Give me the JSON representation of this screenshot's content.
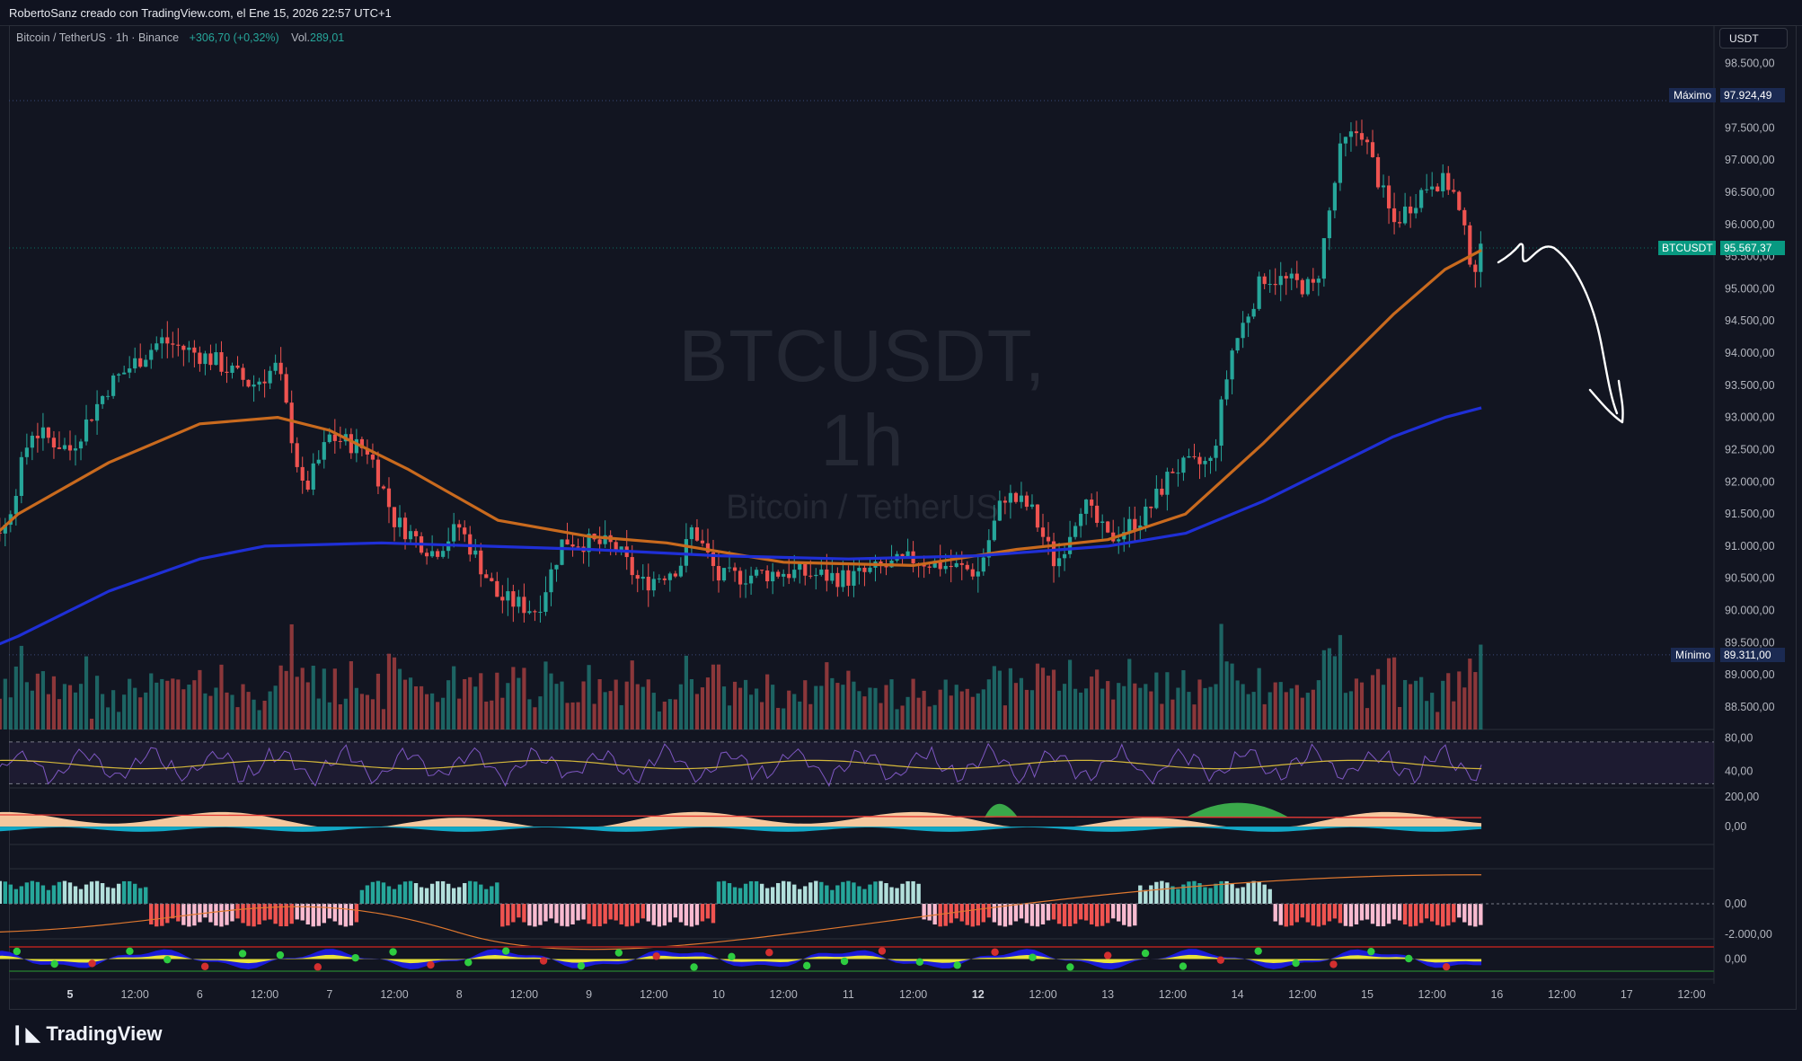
{
  "header": {
    "credit": "RobertoSanz creado con TradingView.com, el Ene 15, 2026 22:57 UTC+1"
  },
  "legend": {
    "symbol": "Bitcoin / TetherUS · 1h · Binance",
    "change": "+306,70 (+0,32%)",
    "vol_label": "Vol.",
    "vol_value": "289,01"
  },
  "currency_button": "USDT",
  "watermark": {
    "line1": "BTCUSDT, 1h",
    "line2": "Bitcoin / TetherUS"
  },
  "price_labels": {
    "max_label": "Máximo",
    "max_value": "97.924,49",
    "min_label": "Mínimo",
    "min_value": "89.311,00",
    "last_label": "BTCUSDT",
    "last_value": "95.567,37"
  },
  "footer": {
    "brand": "TradingView"
  },
  "colors": {
    "background": "#121521",
    "up": "#26a69a",
    "down": "#ef5350",
    "ema_orange": "#c96a1e",
    "ema_blue": "#1f2fd6",
    "last_price": "#089981"
  },
  "chart_data": [
    {
      "type": "candlestick",
      "panel": "price",
      "y_axis_ticks": [
        "98.500,00",
        "98.000,00",
        "97.500,00",
        "97.000,00",
        "96.500,00",
        "96.000,00",
        "95.500,00",
        "95.000,00",
        "94.500,00",
        "94.000,00",
        "93.500,00",
        "93.000,00",
        "92.500,00",
        "92.000,00",
        "91.500,00",
        "91.000,00",
        "90.500,00",
        "90.000,00",
        "89.500,00",
        "89.000,00",
        "88.500,00"
      ],
      "ylim": [
        88150,
        98650
      ],
      "x_axis_ticks": [
        "5",
        "12:00",
        "6",
        "12:00",
        "7",
        "12:00",
        "8",
        "12:00",
        "9",
        "12:00",
        "10",
        "12:00",
        "11",
        "12:00",
        "12",
        "12:00",
        "13",
        "12:00",
        "14",
        "12:00",
        "15",
        "12:00",
        "16",
        "12:00",
        "17",
        "12:00"
      ],
      "price_path": [
        {
          "d": 4.0,
          "p": 91050
        },
        {
          "d": 4.5,
          "p": 91300
        },
        {
          "d": 4.7,
          "p": 92800
        },
        {
          "d": 5.0,
          "p": 92500
        },
        {
          "d": 5.3,
          "p": 93500
        },
        {
          "d": 5.7,
          "p": 94200
        },
        {
          "d": 6.1,
          "p": 93900
        },
        {
          "d": 6.4,
          "p": 93500
        },
        {
          "d": 6.6,
          "p": 93800
        },
        {
          "d": 6.8,
          "p": 91800
        },
        {
          "d": 7.0,
          "p": 92700
        },
        {
          "d": 7.3,
          "p": 92500
        },
        {
          "d": 7.5,
          "p": 91400
        },
        {
          "d": 7.8,
          "p": 90900
        },
        {
          "d": 8.0,
          "p": 91300
        },
        {
          "d": 8.3,
          "p": 90200
        },
        {
          "d": 8.6,
          "p": 90000
        },
        {
          "d": 8.8,
          "p": 91100
        },
        {
          "d": 9.2,
          "p": 91000
        },
        {
          "d": 9.4,
          "p": 90400
        },
        {
          "d": 9.7,
          "p": 90700
        },
        {
          "d": 9.8,
          "p": 91300
        },
        {
          "d": 10.0,
          "p": 90500
        },
        {
          "d": 10.5,
          "p": 90600
        },
        {
          "d": 11.0,
          "p": 90500
        },
        {
          "d": 11.5,
          "p": 90800
        },
        {
          "d": 12.0,
          "p": 90600
        },
        {
          "d": 12.2,
          "p": 91800
        },
        {
          "d": 12.4,
          "p": 91600
        },
        {
          "d": 12.6,
          "p": 90700
        },
        {
          "d": 12.8,
          "p": 91700
        },
        {
          "d": 13.0,
          "p": 91100
        },
        {
          "d": 13.3,
          "p": 91500
        },
        {
          "d": 13.5,
          "p": 92200
        },
        {
          "d": 13.8,
          "p": 92300
        },
        {
          "d": 13.95,
          "p": 94000
        },
        {
          "d": 14.2,
          "p": 95200
        },
        {
          "d": 14.6,
          "p": 95000
        },
        {
          "d": 14.8,
          "p": 97200
        },
        {
          "d": 14.95,
          "p": 97500
        },
        {
          "d": 15.2,
          "p": 96000
        },
        {
          "d": 15.5,
          "p": 96700
        },
        {
          "d": 15.65,
          "p": 96600
        },
        {
          "d": 15.82,
          "p": 95300
        },
        {
          "d": 15.88,
          "p": 95567
        }
      ],
      "overlays": [
        {
          "name": "EMA (orange)",
          "color": "#c96a1e",
          "points": [
            [
              4.0,
              90400
            ],
            [
              4.6,
              91500
            ],
            [
              5.3,
              92300
            ],
            [
              6.0,
              92900
            ],
            [
              6.6,
              93000
            ],
            [
              7.0,
              92800
            ],
            [
              7.6,
              92200
            ],
            [
              8.3,
              91400
            ],
            [
              9.0,
              91150
            ],
            [
              9.6,
              91050
            ],
            [
              10.5,
              90750
            ],
            [
              11.5,
              90700
            ],
            [
              12.3,
              90950
            ],
            [
              13.0,
              91100
            ],
            [
              13.6,
              91500
            ],
            [
              14.2,
              92600
            ],
            [
              14.7,
              93600
            ],
            [
              15.2,
              94600
            ],
            [
              15.6,
              95300
            ],
            [
              15.88,
              95600
            ]
          ]
        },
        {
          "name": "EMA (blue)",
          "color": "#1f2fd6",
          "points": [
            [
              4.0,
              89100
            ],
            [
              4.6,
              89600
            ],
            [
              5.3,
              90300
            ],
            [
              6.0,
              90800
            ],
            [
              6.5,
              91000
            ],
            [
              7.4,
              91050
            ],
            [
              8.2,
              91000
            ],
            [
              9.0,
              90950
            ],
            [
              10.0,
              90850
            ],
            [
              11.0,
              90800
            ],
            [
              12.0,
              90850
            ],
            [
              13.0,
              91000
            ],
            [
              13.6,
              91200
            ],
            [
              14.2,
              91700
            ],
            [
              14.7,
              92200
            ],
            [
              15.2,
              92700
            ],
            [
              15.6,
              93000
            ],
            [
              15.88,
              93150
            ]
          ]
        }
      ]
    },
    {
      "type": "line",
      "panel": "oscillator-1",
      "y_axis_ticks": [
        "80,00",
        "40,00"
      ],
      "ylim": [
        20,
        90
      ]
    },
    {
      "type": "area",
      "panel": "oscillator-2",
      "y_axis_ticks": [
        "200,00",
        "0,00"
      ],
      "ylim": [
        -120,
        260
      ]
    },
    {
      "type": "bar",
      "panel": "oscillator-3",
      "y_axis_ticks": [
        "0,00",
        "-2.000,00"
      ],
      "ylim": [
        -2300,
        2300
      ]
    },
    {
      "type": "area",
      "panel": "oscillator-4",
      "y_axis_ticks": [
        "0,00"
      ],
      "ylim": [
        -100,
        100
      ]
    }
  ]
}
